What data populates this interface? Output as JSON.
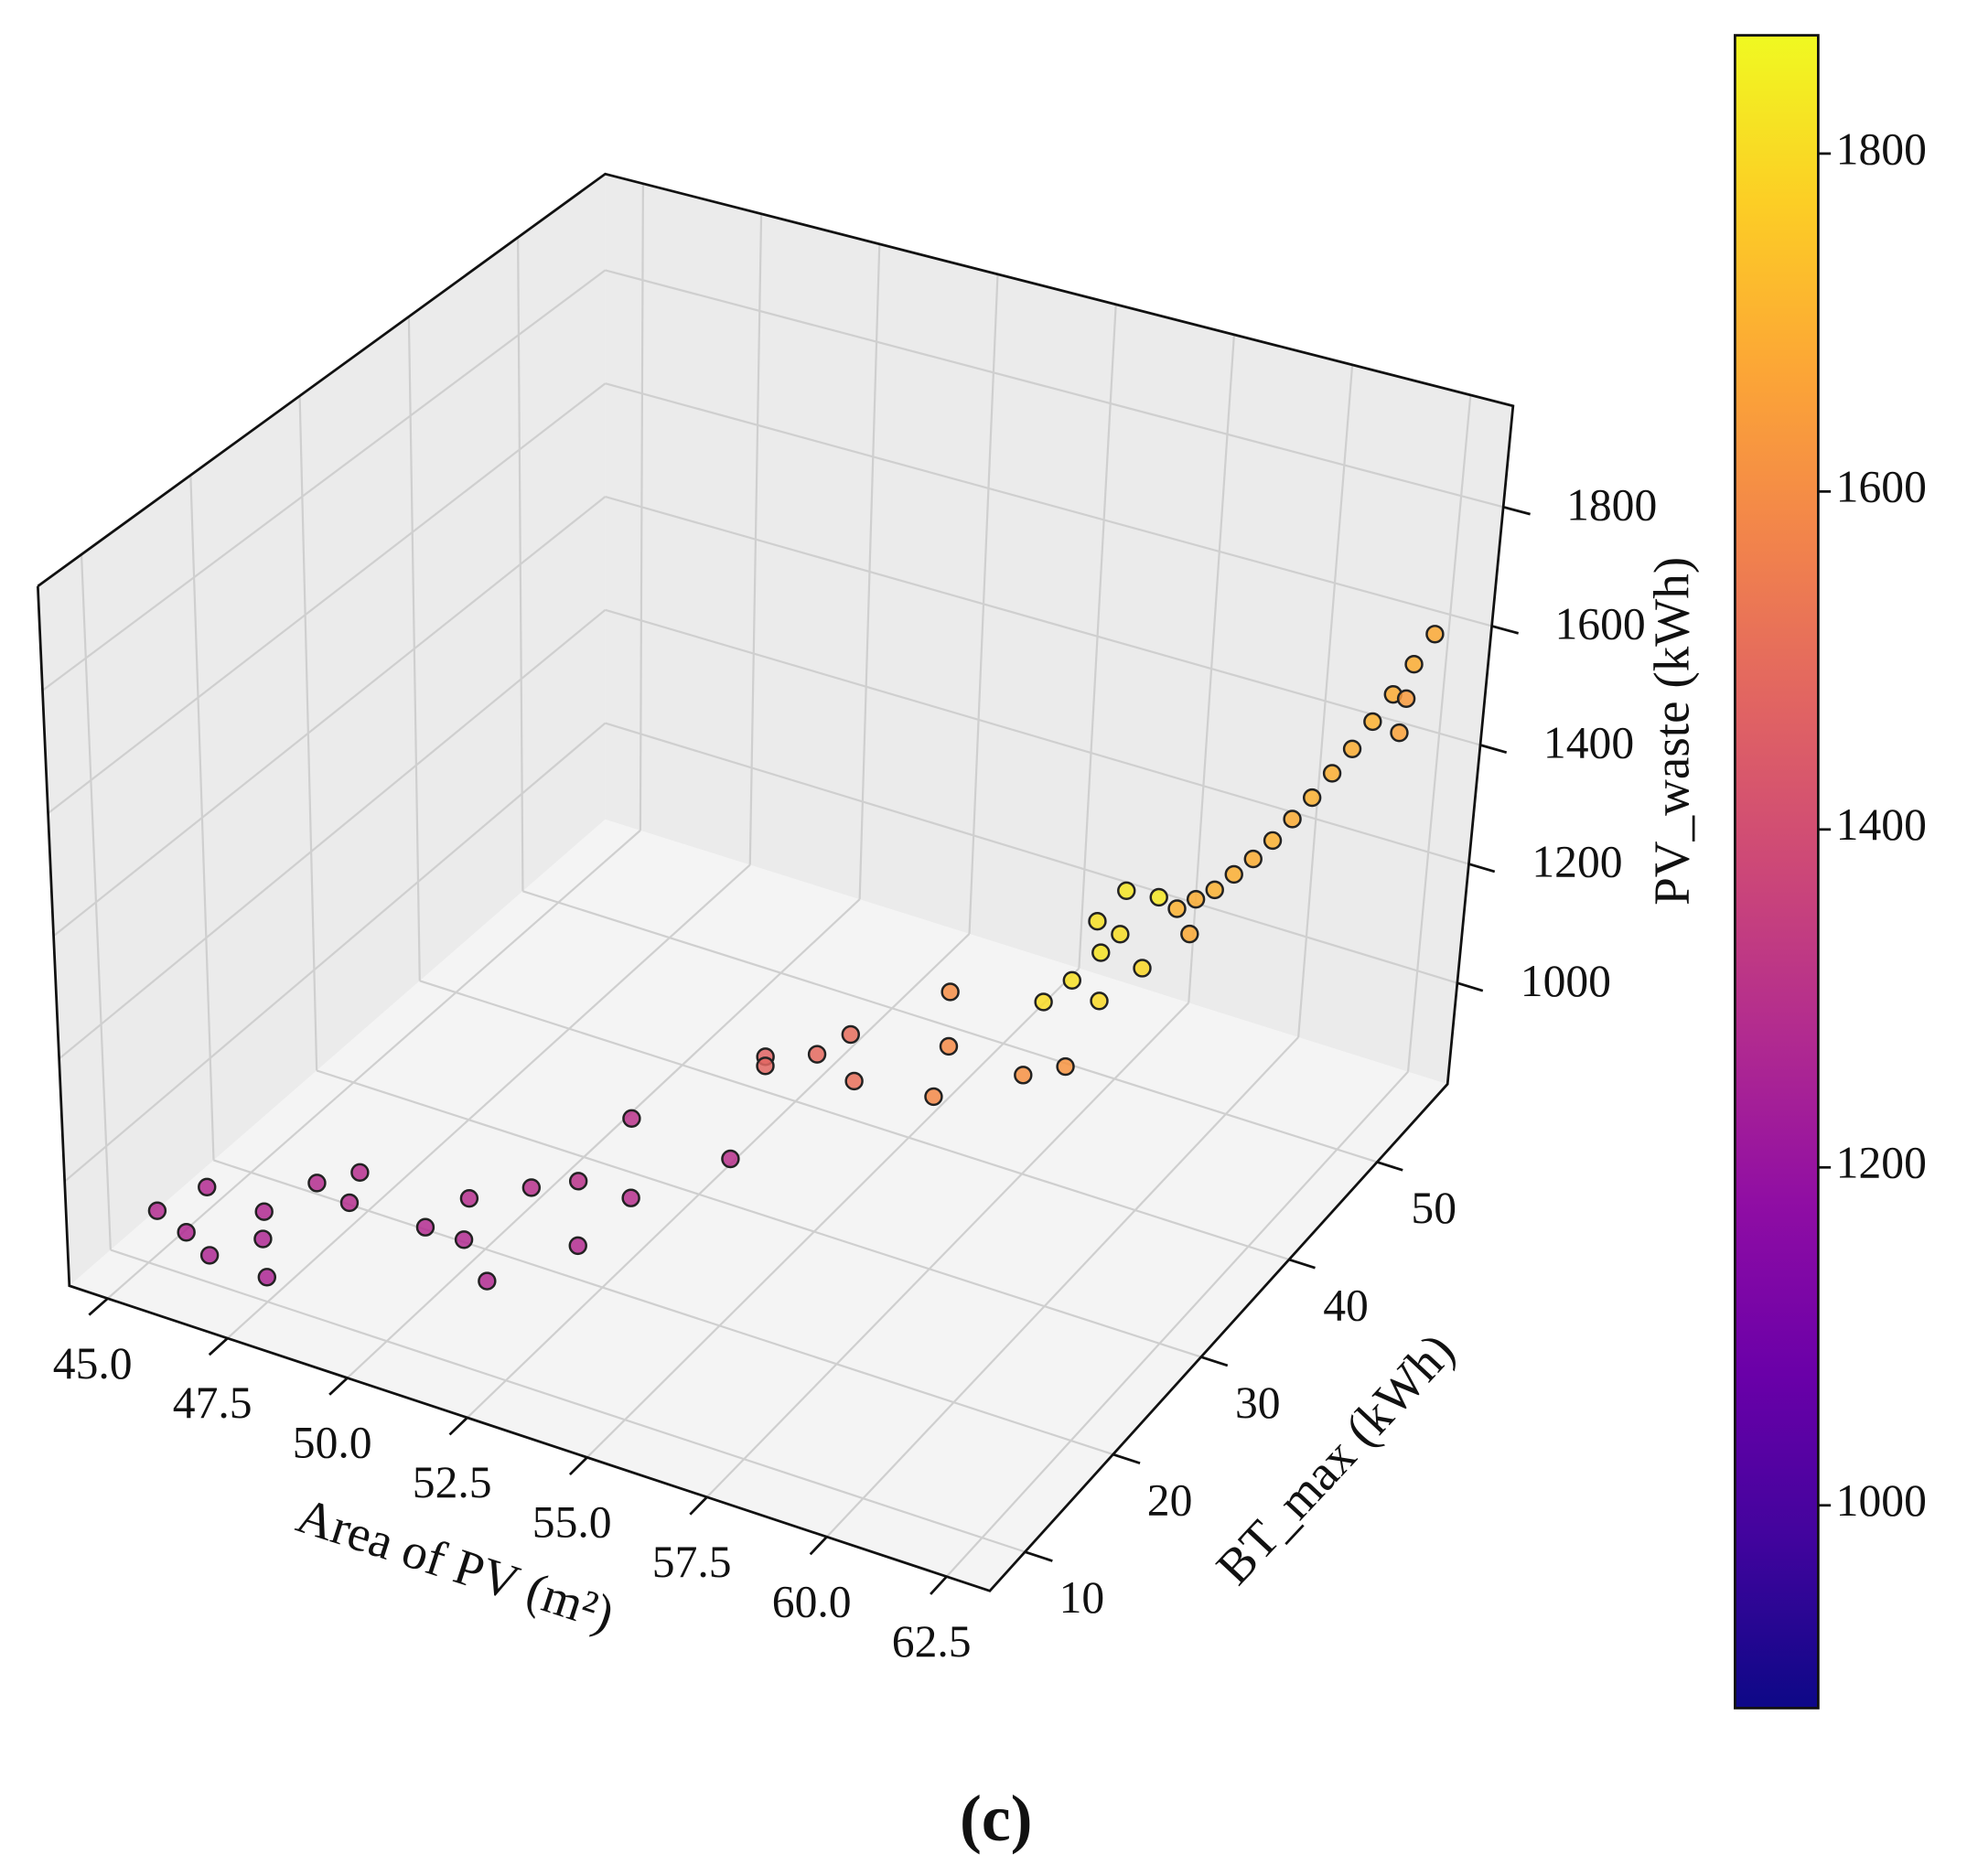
{
  "chart_data": {
    "type": "scatter3d",
    "xlabel": "Area of PV (m²)",
    "ylabel": "BT_max (kWh)",
    "zlabel": "PV_waste (kWh)",
    "caption": "(c)",
    "colormap": "plasma",
    "xlim": [
      44.2,
      63.4
    ],
    "xticks": [
      {
        "value": 45,
        "label": "45.0"
      },
      47.5,
      {
        "value": 50,
        "label": "50.0"
      },
      52.5,
      {
        "value": 55,
        "label": "55.0"
      },
      57.5,
      {
        "value": 60,
        "label": "60.0"
      },
      62.5
    ],
    "ylim": [
      6,
      58
    ],
    "yticks": [
      10,
      20,
      30,
      40,
      50
    ],
    "zlim": [
      830,
      1970
    ],
    "zticks": [
      1000,
      1200,
      1400,
      1600,
      1800
    ],
    "clim": [
      880,
      1870
    ],
    "cticks": [
      1000,
      1200,
      1400,
      1600,
      1800
    ],
    "grid": true,
    "x": [
      45.0,
      45.4,
      45.6,
      46.3,
      46.6,
      47.0,
      47.5,
      47.3,
      48.0,
      48.2,
      49.8,
      50.1,
      50.4,
      51.0,
      51.3,
      52.0,
      52.4,
      52.7,
      52.3,
      54.2,
      53.9,
      53.9,
      55.0,
      55.1,
      55.8,
      56.6,
      57.0,
      57.3,
      58.8,
      59.5,
      58.4,
      58.6,
      58.8,
      58.5,
      58.7,
      59.0,
      59.2,
      59.4,
      59.7,
      59.8,
      60.0,
      60.2,
      60.1,
      60.4,
      60.6,
      60.8,
      61.0,
      61.2,
      61.4,
      61.6,
      61.8,
      62.0,
      62.2,
      62.4,
      62.1,
      62.2
    ],
    "y": [
      11,
      14,
      11,
      10,
      14,
      12,
      10,
      16,
      17,
      15,
      15,
      18,
      16,
      20,
      14,
      20,
      18,
      22,
      24,
      25,
      30,
      30,
      30,
      33,
      30,
      36,
      34,
      31,
      33,
      34,
      37,
      39,
      41,
      42,
      44,
      42,
      39,
      44,
      41,
      44,
      45,
      46,
      44,
      47,
      48,
      49,
      50,
      51,
      52,
      53,
      54,
      55,
      56,
      57,
      56,
      55
    ],
    "z": [
      900,
      905,
      880,
      875,
      895,
      890,
      870,
      930,
      950,
      935,
      935,
      945,
      915,
      955,
      900,
      990,
      925,
      950,
      1040,
      1005,
      1090,
      1075,
      1120,
      1110,
      1095,
      1170,
      1120,
      1090,
      1130,
      1145,
      1180,
      1190,
      1210,
      1240,
      1265,
      1230,
      1170,
      1270,
      1205,
      1260,
      1265,
      1270,
      1225,
      1285,
      1300,
      1320,
      1345,
      1370,
      1400,
      1430,
      1465,
      1500,
      1540,
      1580,
      1480,
      1440
    ],
    "color_values": [
      1280,
      1275,
      1270,
      1265,
      1272,
      1268,
      1262,
      1285,
      1290,
      1288,
      1282,
      1290,
      1278,
      1295,
      1276,
      1300,
      1282,
      1292,
      1305,
      1298,
      1470,
      1480,
      1490,
      1500,
      1510,
      1600,
      1590,
      1585,
      1610,
      1620,
      1800,
      1810,
      1820,
      1815,
      1825,
      1805,
      1795,
      1830,
      1790,
      1700,
      1690,
      1700,
      1680,
      1695,
      1690,
      1700,
      1685,
      1700,
      1695,
      1690,
      1700,
      1685,
      1690,
      1680,
      1640,
      1660
    ]
  }
}
